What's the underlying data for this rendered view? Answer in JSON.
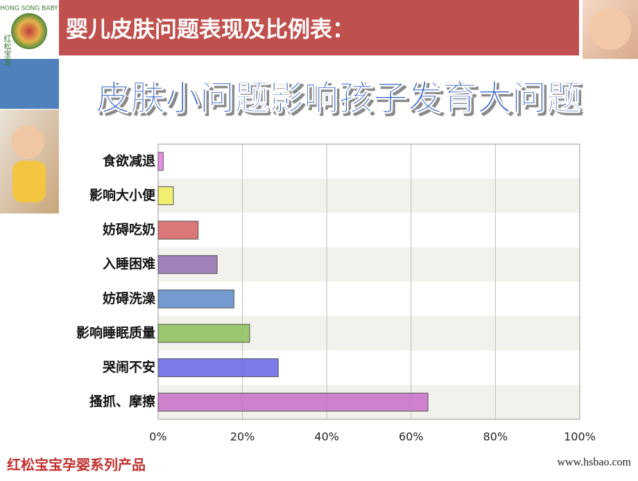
{
  "header": {
    "title": "婴儿皮肤问题表现及比例表："
  },
  "logo": {
    "cn": "红松宝宝",
    "en": "HONG SONG BABY"
  },
  "chart_data": {
    "type": "bar",
    "orientation": "horizontal",
    "title": "皮肤小问题影响孩子发育大问题",
    "categories": [
      "食欲减退",
      "影响大小便",
      "妨碍吃奶",
      "入睡困难",
      "妨碍洗澡",
      "影响睡眠质量",
      "哭闹不安",
      "搔抓、摩擦"
    ],
    "values": [
      1.2,
      3.6,
      9.5,
      14,
      18,
      21.7,
      28.5,
      64
    ],
    "colors": [
      "#e27be2",
      "#f0ef5a",
      "#d45f62",
      "#8f6eb0",
      "#5a8ac8",
      "#8cbf5a",
      "#6464e6",
      "#c86fc8"
    ],
    "xlim": [
      0,
      100
    ],
    "xticks": [
      {
        "value": 0,
        "label": "0%"
      },
      {
        "value": 20,
        "label": "20%"
      },
      {
        "value": 40,
        "label": "40%"
      },
      {
        "value": 60,
        "label": "60%"
      },
      {
        "value": 80,
        "label": "80%"
      },
      {
        "value": 100,
        "label": "100%"
      }
    ],
    "grid": true
  },
  "footer": {
    "left": "红松宝宝孕婴系列产品",
    "right": "www.hsbao.com"
  }
}
